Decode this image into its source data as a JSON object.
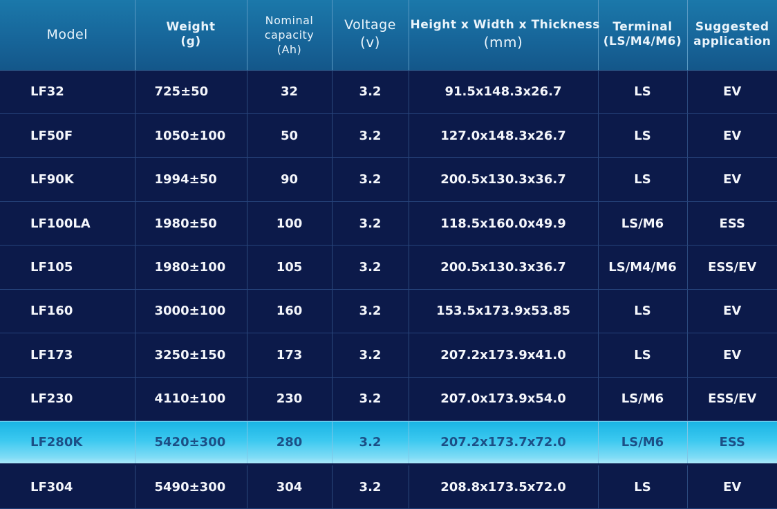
{
  "header": {
    "model": [
      "Model"
    ],
    "weight": [
      "Weight",
      "(g)"
    ],
    "capacity": [
      "Nominal",
      "capacity",
      "(Ah)"
    ],
    "voltage": [
      "Voltage",
      "(v)"
    ],
    "dimensions": [
      "Height x Width x Thickness",
      "(mm)"
    ],
    "terminal": [
      "Terminal",
      "(LS/M4/M6)"
    ],
    "application": [
      "Suggested",
      "application"
    ]
  },
  "colors": {
    "header_top": "#1b78aa",
    "row_background": "#0c1a4a",
    "highlight_start": "#1ab4e4",
    "highlight_end": "#aee9fa",
    "highlight_text": "#1c4f86"
  },
  "rows": [
    {
      "model": "LF32",
      "weight": "725±50",
      "capacity": "32",
      "voltage": "3.2",
      "dimensions": "91.5x148.3x26.7",
      "terminal": "LS",
      "application": "EV"
    },
    {
      "model": "LF50F",
      "weight": "1050±100",
      "capacity": "50",
      "voltage": "3.2",
      "dimensions": "127.0x148.3x26.7",
      "terminal": "LS",
      "application": "EV"
    },
    {
      "model": "LF90K",
      "weight": "1994±50",
      "capacity": "90",
      "voltage": "3.2",
      "dimensions": "200.5x130.3x36.7",
      "terminal": "LS",
      "application": "EV"
    },
    {
      "model": "LF100LA",
      "weight": "1980±50",
      "capacity": "100",
      "voltage": "3.2",
      "dimensions": "118.5x160.0x49.9",
      "terminal": "LS/M6",
      "application": "ESS"
    },
    {
      "model": "LF105",
      "weight": "1980±100",
      "capacity": "105",
      "voltage": "3.2",
      "dimensions": "200.5x130.3x36.7",
      "terminal": "LS/M4/M6",
      "application": "ESS/EV"
    },
    {
      "model": "LF160",
      "weight": "3000±100",
      "capacity": "160",
      "voltage": "3.2",
      "dimensions": "153.5x173.9x53.85",
      "terminal": "LS",
      "application": "EV"
    },
    {
      "model": "LF173",
      "weight": "3250±150",
      "capacity": "173",
      "voltage": "3.2",
      "dimensions": "207.2x173.9x41.0",
      "terminal": "LS",
      "application": "EV"
    },
    {
      "model": "LF230",
      "weight": "4110±100",
      "capacity": "230",
      "voltage": "3.2",
      "dimensions": "207.0x173.9x54.0",
      "terminal": "LS/M6",
      "application": "ESS/EV"
    },
    {
      "model": "LF280K",
      "weight": "5420±300",
      "capacity": "280",
      "voltage": "3.2",
      "dimensions": "207.2x173.7x72.0",
      "terminal": "LS/M6",
      "application": "ESS",
      "highlighted": true
    },
    {
      "model": "LF304",
      "weight": "5490±300",
      "capacity": "304",
      "voltage": "3.2",
      "dimensions": "208.8x173.5x72.0",
      "terminal": "LS",
      "application": "EV"
    }
  ]
}
